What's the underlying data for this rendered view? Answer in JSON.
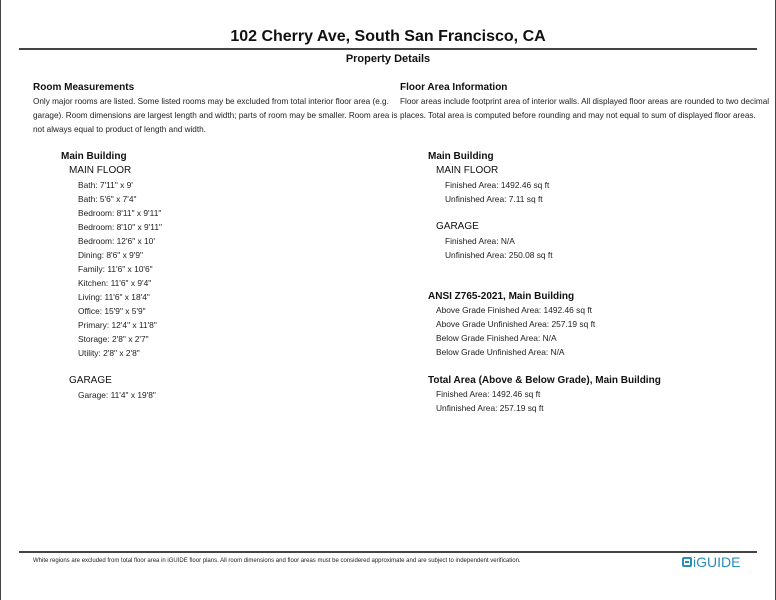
{
  "header": {
    "title": "102 Cherry Ave, South San Francisco, CA",
    "subtitle": "Property Details"
  },
  "rooms": {
    "heading": "Room Measurements",
    "description": "Only major rooms are listed. Some listed rooms may be excluded from total interior floor area (e.g. garage). Room dimensions are largest length and width; parts of room may be smaller. Room area is not always equal to product of length and width.",
    "building": "Main Building",
    "floors": [
      {
        "name": "MAIN FLOOR",
        "items": [
          "Bath: 7'11\" x 9'",
          "Bath: 5'6\" x 7'4\"",
          "Bedroom: 8'11\" x 9'11\"",
          "Bedroom: 8'10\" x 9'11\"",
          "Bedroom: 12'6\" x 10'",
          "Dining: 8'6\" x 9'9\"",
          "Family: 11'6\" x 10'6\"",
          "Kitchen: 11'6\" x 9'4\"",
          "Living: 11'6\" x 18'4\"",
          "Office: 15'9\" x 5'9\"",
          "Primary: 12'4\" x 11'8\"",
          "Storage: 2'8\" x 2'7\"",
          "Utility: 2'8\" x 2'8\""
        ]
      },
      {
        "name": "GARAGE",
        "items": [
          "Garage: 11'4\" x 19'8\""
        ]
      }
    ]
  },
  "areas": {
    "heading": "Floor Area Information",
    "description": "Floor areas include footprint area of interior walls. All displayed floor areas are rounded to two decimal places. Total area is computed before rounding and may not equal to sum of displayed floor areas.",
    "building": "Main Building",
    "floors": [
      {
        "name": "MAIN FLOOR",
        "items": [
          "Finished Area: 1492.46 sq ft",
          "Unfinished Area: 7.11 sq ft"
        ]
      },
      {
        "name": "GARAGE",
        "items": [
          "Finished Area: N/A",
          "Unfinished Area: 250.08 sq ft"
        ]
      }
    ],
    "ansi": {
      "heading": "ANSI Z765-2021, Main Building",
      "items": [
        "Above Grade Finished Area: 1492.46 sq ft",
        "Above Grade Unfinished Area: 257.19 sq ft",
        "Below Grade Finished Area: N/A",
        "Below Grade Unfinished Area: N/A"
      ]
    },
    "total": {
      "heading": "Total Area (Above & Below Grade), Main Building",
      "items": [
        "Finished Area: 1492.46 sq ft",
        "Unfinished Area: 257.19 sq ft"
      ]
    }
  },
  "footer": {
    "disclaimer": "White regions are excluded from total floor area in iGUIDE floor plans. All room dimensions and floor areas must be considered approximate and are subject to independent verification.",
    "logo": "iGUIDE",
    "brand_color": "#2a8fb8"
  }
}
